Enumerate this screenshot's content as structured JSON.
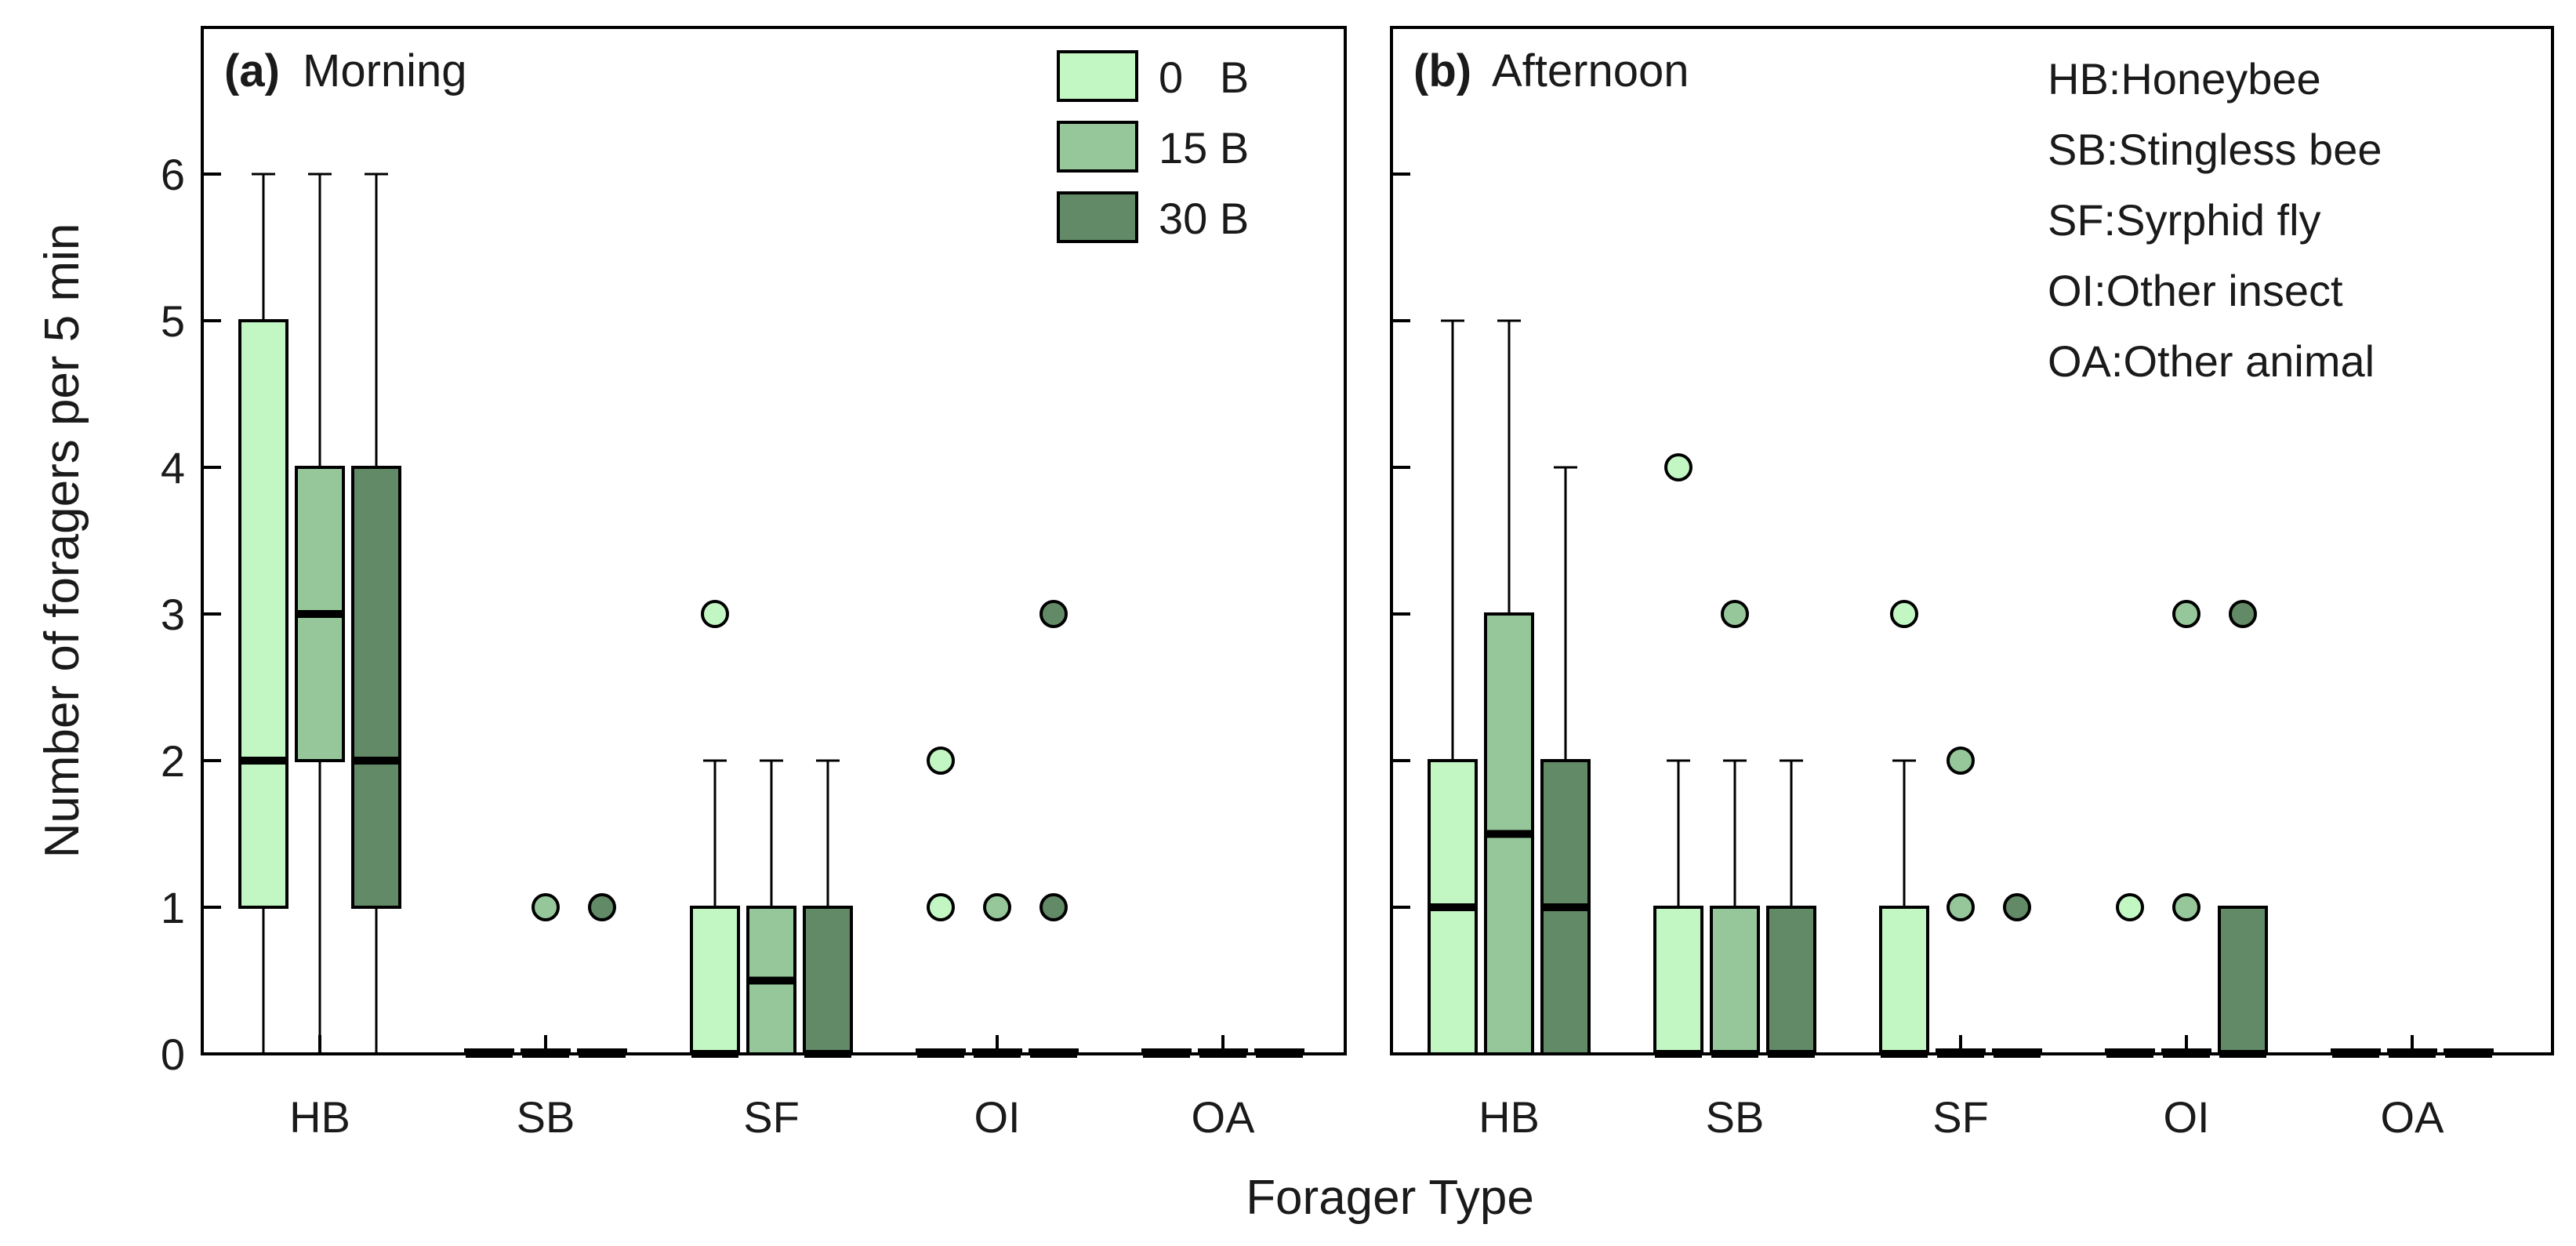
{
  "chart_data": {
    "type": "box",
    "xlabel": "Forager Type",
    "ylabel": "Number of foragers per 5 min",
    "ylim": [
      0,
      7
    ],
    "yticks": [
      0,
      1,
      2,
      3,
      4,
      5,
      6
    ],
    "categories": [
      "HB",
      "SB",
      "SF",
      "OI",
      "OA"
    ],
    "series": [
      {
        "name": "0   B",
        "color": "#c2f7c4"
      },
      {
        "name": "15 B",
        "color": "#96c79a"
      },
      {
        "name": "30 B",
        "color": "#628a66"
      }
    ],
    "key": [
      "HB:Honeybee",
      "SB:Stingless bee",
      "SF:Syrphid fly",
      "OI:Other insect",
      "OA:Other animal"
    ],
    "panels": [
      {
        "label": "(a)",
        "title": "Morning",
        "groups": {
          "HB": [
            {
              "min": 0,
              "q1": 1,
              "median": 2,
              "q3": 5,
              "max": 6,
              "outliers": []
            },
            {
              "min": 0,
              "q1": 2,
              "median": 3,
              "q3": 4,
              "max": 6,
              "outliers": []
            },
            {
              "min": 0,
              "q1": 1,
              "median": 2,
              "q3": 4,
              "max": 6,
              "outliers": []
            }
          ],
          "SB": [
            {
              "min": 0,
              "q1": 0,
              "median": 0,
              "q3": 0,
              "max": 0,
              "outliers": []
            },
            {
              "min": 0,
              "q1": 0,
              "median": 0,
              "q3": 0,
              "max": 0,
              "outliers": [
                1
              ]
            },
            {
              "min": 0,
              "q1": 0,
              "median": 0,
              "q3": 0,
              "max": 0,
              "outliers": [
                1
              ]
            }
          ],
          "SF": [
            {
              "min": 0,
              "q1": 0,
              "median": 0,
              "q3": 1,
              "max": 2,
              "outliers": [
                3
              ]
            },
            {
              "min": 0,
              "q1": 0,
              "median": 0.5,
              "q3": 1,
              "max": 2,
              "outliers": []
            },
            {
              "min": 0,
              "q1": 0,
              "median": 0,
              "q3": 1,
              "max": 2,
              "outliers": []
            }
          ],
          "OI": [
            {
              "min": 0,
              "q1": 0,
              "median": 0,
              "q3": 0,
              "max": 0,
              "outliers": [
                1,
                2
              ]
            },
            {
              "min": 0,
              "q1": 0,
              "median": 0,
              "q3": 0,
              "max": 0,
              "outliers": [
                1
              ]
            },
            {
              "min": 0,
              "q1": 0,
              "median": 0,
              "q3": 0,
              "max": 0,
              "outliers": [
                1,
                3
              ]
            }
          ],
          "OA": [
            {
              "min": 0,
              "q1": 0,
              "median": 0,
              "q3": 0,
              "max": 0,
              "outliers": []
            },
            {
              "min": 0,
              "q1": 0,
              "median": 0,
              "q3": 0,
              "max": 0,
              "outliers": []
            },
            {
              "min": 0,
              "q1": 0,
              "median": 0,
              "q3": 0,
              "max": 0,
              "outliers": []
            }
          ]
        }
      },
      {
        "label": "(b)",
        "title": "Afternoon",
        "groups": {
          "HB": [
            {
              "min": 0,
              "q1": 0,
              "median": 1,
              "q3": 2,
              "max": 5,
              "outliers": []
            },
            {
              "min": 0,
              "q1": 0,
              "median": 1.5,
              "q3": 3,
              "max": 5,
              "outliers": []
            },
            {
              "min": 0,
              "q1": 0,
              "median": 1,
              "q3": 2,
              "max": 4,
              "outliers": []
            }
          ],
          "SB": [
            {
              "min": 0,
              "q1": 0,
              "median": 0,
              "q3": 1,
              "max": 2,
              "outliers": [
                4
              ]
            },
            {
              "min": 0,
              "q1": 0,
              "median": 0,
              "q3": 1,
              "max": 2,
              "outliers": [
                3
              ]
            },
            {
              "min": 0,
              "q1": 0,
              "median": 0,
              "q3": 1,
              "max": 2,
              "outliers": []
            }
          ],
          "SF": [
            {
              "min": 0,
              "q1": 0,
              "median": 0,
              "q3": 1,
              "max": 2,
              "outliers": [
                3
              ]
            },
            {
              "min": 0,
              "q1": 0,
              "median": 0,
              "q3": 0,
              "max": 0,
              "outliers": [
                1,
                2
              ]
            },
            {
              "min": 0,
              "q1": 0,
              "median": 0,
              "q3": 0,
              "max": 0,
              "outliers": [
                1
              ]
            }
          ],
          "OI": [
            {
              "min": 0,
              "q1": 0,
              "median": 0,
              "q3": 0,
              "max": 0,
              "outliers": [
                1
              ]
            },
            {
              "min": 0,
              "q1": 0,
              "median": 0,
              "q3": 0,
              "max": 0,
              "outliers": [
                1,
                3
              ]
            },
            {
              "min": 0,
              "q1": 0,
              "median": 0,
              "q3": 1,
              "max": 1,
              "outliers": [
                3
              ]
            }
          ],
          "OA": [
            {
              "min": 0,
              "q1": 0,
              "median": 0,
              "q3": 0,
              "max": 0,
              "outliers": []
            },
            {
              "min": 0,
              "q1": 0,
              "median": 0,
              "q3": 0,
              "max": 0,
              "outliers": []
            },
            {
              "min": 0,
              "q1": 0,
              "median": 0,
              "q3": 0,
              "max": 0,
              "outliers": []
            }
          ]
        }
      }
    ]
  }
}
